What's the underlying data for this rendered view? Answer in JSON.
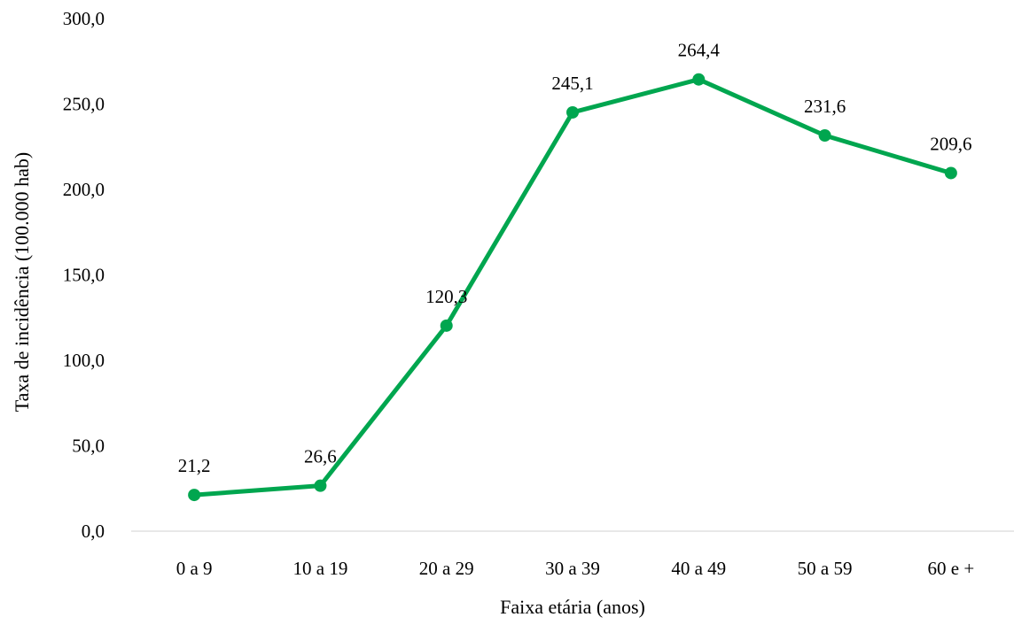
{
  "chart_data": {
    "type": "line",
    "title": "",
    "xlabel": "Faixa etária (anos)",
    "ylabel": "Taxa de incidência (100.000 hab)",
    "categories": [
      "0 a 9",
      "10 a 19",
      "20 a 29",
      "30 a 39",
      "40 a 49",
      "50 a 59",
      "60 e +"
    ],
    "series": [
      {
        "values": [
          21.2,
          26.6,
          120.3,
          245.1,
          264.4,
          231.6,
          209.6
        ],
        "value_labels": [
          "21,2",
          "26,6",
          "120,3",
          "245,1",
          "264,4",
          "231,6",
          "209,6"
        ],
        "color": "#00A64F"
      }
    ],
    "ylim": [
      0,
      300
    ],
    "yticks": [
      0,
      50,
      100,
      150,
      200,
      250,
      300
    ],
    "ytick_labels": [
      "0,0",
      "50,0",
      "100,0",
      "150,0",
      "200,0",
      "250,0",
      "300,0"
    ],
    "grid": false,
    "legend": "none",
    "axis_color": "#D9D9D9"
  }
}
